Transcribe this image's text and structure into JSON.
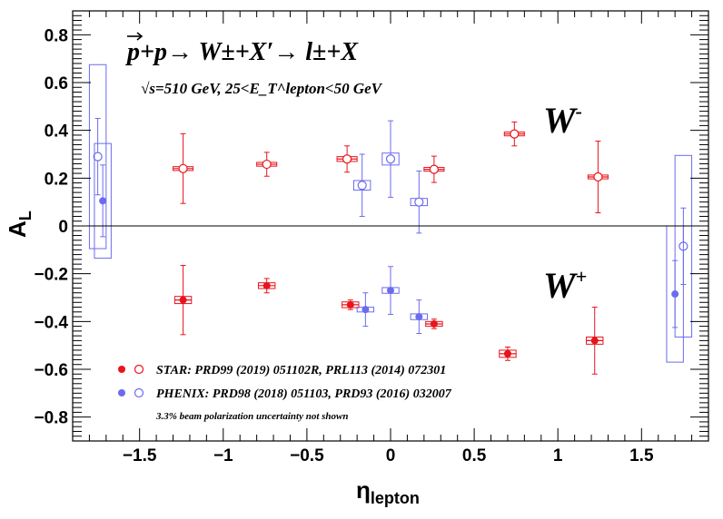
{
  "chart_data": {
    "type": "scatter",
    "title": "p+p→ W±+X′→ l±+X",
    "subtitle": "√s=510 GeV, 25<E_T^lepton<50 GeV",
    "xlabel": "η_lepton",
    "ylabel": "A_L",
    "xlim": [
      -1.9,
      1.9
    ],
    "ylim": [
      -0.9,
      0.9
    ],
    "x_ticks": [
      -1.5,
      -1,
      -0.5,
      0,
      0.5,
      1,
      1.5
    ],
    "y_ticks": [
      -0.8,
      -0.6,
      -0.4,
      -0.2,
      0,
      0.2,
      0.4,
      0.6,
      0.8
    ],
    "annotations": {
      "w_minus": "W",
      "w_minus_sup": "-",
      "w_plus": "W",
      "w_plus_sup": "+",
      "star_ref": "STAR: PRD99 (2019) 051102R, PRL113 (2014) 072301",
      "phenix_ref": "PHENIX: PRD98 (2018) 051103, PRD93 (2016) 032007",
      "note": "3.3% beam polarization uncertainty not shown"
    },
    "colors": {
      "star": "#e8141c",
      "phenix": "#6b6bf0"
    },
    "series": [
      {
        "name": "STAR W-",
        "color": "#e8141c",
        "marker": "open",
        "sys_dx": 0.06,
        "points": [
          {
            "x": -1.24,
            "y": 0.24,
            "err": 0.146,
            "sys": 0.008
          },
          {
            "x": -0.74,
            "y": 0.258,
            "err": 0.05,
            "sys": 0.008
          },
          {
            "x": -0.26,
            "y": 0.28,
            "err": 0.055,
            "sys": 0.01
          },
          {
            "x": 0.26,
            "y": 0.237,
            "err": 0.055,
            "sys": 0.008
          },
          {
            "x": 0.74,
            "y": 0.385,
            "err": 0.05,
            "sys": 0.008
          },
          {
            "x": 1.24,
            "y": 0.205,
            "err": 0.15,
            "sys": 0.008
          }
        ]
      },
      {
        "name": "STAR W+",
        "color": "#e8141c",
        "marker": "filled",
        "sys_dx": 0.05,
        "points": [
          {
            "x": -1.24,
            "y": -0.31,
            "err": 0.145,
            "sys": 0.015
          },
          {
            "x": -0.74,
            "y": -0.25,
            "err": 0.03,
            "sys": 0.012
          },
          {
            "x": -0.24,
            "y": -0.33,
            "err": 0.02,
            "sys": 0.012
          },
          {
            "x": 0.26,
            "y": -0.41,
            "err": 0.02,
            "sys": 0.01
          },
          {
            "x": 0.7,
            "y": -0.535,
            "err": 0.028,
            "sys": 0.015
          },
          {
            "x": 1.22,
            "y": -0.48,
            "err": 0.14,
            "sys": 0.015
          }
        ]
      },
      {
        "name": "PHENIX W-",
        "color": "#6b6bf0",
        "marker": "open",
        "sys_dx": 0.05,
        "points": [
          {
            "x": -1.75,
            "y": 0.29,
            "err": 0.16,
            "sys": 0.385
          },
          {
            "x": -0.17,
            "y": 0.17,
            "err": 0.13,
            "sys": 0.02
          },
          {
            "x": 0.0,
            "y": 0.28,
            "err": 0.16,
            "sys": 0.025
          },
          {
            "x": 0.17,
            "y": 0.1,
            "err": 0.13,
            "sys": 0.015
          },
          {
            "x": 1.75,
            "y": -0.085,
            "err": 0.16,
            "sys": 0.38
          }
        ]
      },
      {
        "name": "PHENIX W+",
        "color": "#6b6bf0",
        "marker": "filled",
        "sys_dx": 0.05,
        "points": [
          {
            "x": -1.72,
            "y": 0.105,
            "err": 0.15,
            "sys": 0.24
          },
          {
            "x": -0.15,
            "y": -0.35,
            "err": 0.07,
            "sys": 0.01
          },
          {
            "x": 0.0,
            "y": -0.27,
            "err": 0.1,
            "sys": 0.012
          },
          {
            "x": 0.17,
            "y": -0.38,
            "err": 0.07,
            "sys": 0.012
          },
          {
            "x": 1.7,
            "y": -0.285,
            "err": 0.14,
            "sys": 0.285
          }
        ]
      }
    ]
  }
}
